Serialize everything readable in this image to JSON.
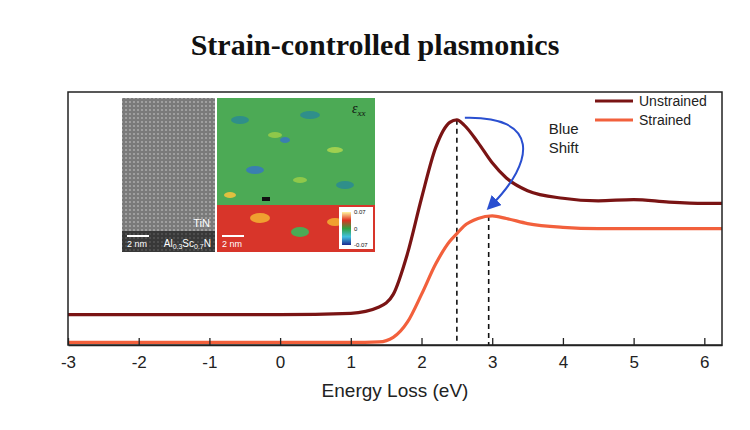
{
  "chart_data": {
    "type": "line",
    "title": "Strain-controlled plasmonics",
    "x_label": "Energy Loss (eV)",
    "x": [
      -3,
      -2,
      -1,
      0,
      1,
      1.4,
      1.6,
      1.8,
      2.0,
      2.2,
      2.4,
      2.5,
      2.6,
      2.8,
      3.0,
      3.2,
      3.5,
      4.0,
      4.5,
      5.0,
      5.5,
      6.0,
      6.25
    ],
    "series": [
      {
        "name": "Unstrained",
        "color": "#7a1414",
        "values": [
          0.12,
          0.12,
          0.12,
          0.12,
          0.125,
          0.15,
          0.2,
          0.36,
          0.58,
          0.78,
          0.88,
          0.89,
          0.87,
          0.8,
          0.72,
          0.66,
          0.61,
          0.58,
          0.57,
          0.575,
          0.565,
          0.56,
          0.56
        ]
      },
      {
        "name": "Strained",
        "color": "#f2603c",
        "values": [
          0.01,
          0.01,
          0.01,
          0.01,
          0.01,
          0.012,
          0.03,
          0.09,
          0.2,
          0.32,
          0.41,
          0.44,
          0.47,
          0.5,
          0.51,
          0.5,
          0.48,
          0.465,
          0.46,
          0.46,
          0.46,
          0.46,
          0.46
        ]
      }
    ],
    "xlim": [
      -3,
      6.25
    ],
    "xticks": [
      -3,
      -2,
      -1,
      0,
      1,
      2,
      3,
      4,
      5,
      6
    ],
    "ylim": [
      0,
      1
    ],
    "tick_labels": "x",
    "legend": "upper right",
    "vlines": [
      {
        "x": 2.5,
        "top": 0.89
      },
      {
        "x": 2.95,
        "top": 0.51
      }
    ],
    "annotations": [
      {
        "text": "Blue Shift",
        "color": "#2a4fd0"
      }
    ],
    "inset": {
      "layer_label": "TiN",
      "substrate_label": "Al0.3Sc0.7N",
      "scale_bars": [
        "2 nm",
        "2 nm"
      ],
      "map_label": "εxx",
      "colorbar_range": [
        -0.07,
        0.07
      ],
      "colorbar_ticks": [
        0.07,
        0,
        -0.07
      ]
    }
  }
}
